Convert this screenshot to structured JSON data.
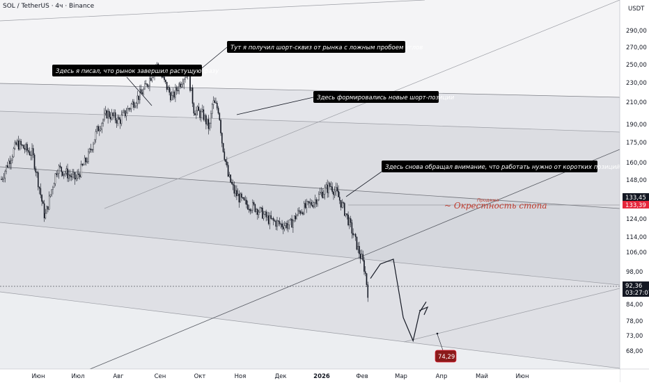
{
  "header": {
    "symbol": "SOL / TetherUS · 4ч · Binance",
    "currency": "USDT"
  },
  "chart_data": {
    "type": "candlestick",
    "title": "SOL / TetherUS · 4ч · Binance",
    "ylabel": "USDT",
    "y_ticks": [
      "290,00",
      "270,00",
      "250,00",
      "230,00",
      "210,00",
      "190,00",
      "175,00",
      "160,00",
      "148,00",
      "133,45",
      "133,39",
      "124,00",
      "114,00",
      "106,00",
      "98,00",
      "92,36",
      "84,00",
      "78,00",
      "73,00",
      "68,00"
    ],
    "x_ticks": [
      "Июн",
      "Июл",
      "Авг",
      "Сен",
      "Окт",
      "Ноя",
      "Дек",
      "2026",
      "Фев",
      "Мар",
      "Апр",
      "Май",
      "Июн"
    ],
    "last_price": "92,36",
    "countdown": "03:27:07",
    "level_prices": [
      "133,45",
      "133,39"
    ],
    "target_price": "74,29",
    "price_path": [
      [
        0,
        150
      ],
      [
        0.05,
        176
      ],
      [
        0.1,
        168
      ],
      [
        0.14,
        126
      ],
      [
        0.18,
        158
      ],
      [
        0.24,
        150
      ],
      [
        0.28,
        166
      ],
      [
        0.31,
        188
      ],
      [
        0.34,
        202
      ],
      [
        0.38,
        195
      ],
      [
        0.42,
        210
      ],
      [
        0.46,
        225
      ],
      [
        0.5,
        252
      ],
      [
        0.52,
        236
      ],
      [
        0.55,
        216
      ],
      [
        0.58,
        235
      ],
      [
        0.6,
        245
      ],
      [
        0.62,
        205
      ],
      [
        0.65,
        200
      ],
      [
        0.67,
        188
      ],
      [
        0.68,
        212
      ],
      [
        0.7,
        205
      ],
      [
        0.71,
        178
      ],
      [
        0.73,
        152
      ],
      [
        0.75,
        142
      ],
      [
        0.78,
        135
      ],
      [
        0.82,
        132
      ],
      [
        0.86,
        125
      ],
      [
        0.9,
        122
      ],
      [
        0.93,
        122
      ],
      [
        0.96,
        130
      ],
      [
        1.0,
        135
      ],
      [
        1.03,
        141
      ],
      [
        1.06,
        146
      ],
      [
        1.08,
        141
      ],
      [
        1.11,
        128
      ],
      [
        1.13,
        118
      ],
      [
        1.15,
        108
      ],
      [
        1.17,
        100
      ],
      [
        1.18,
        90
      ]
    ],
    "projection_path": [
      [
        0,
        96
      ],
      [
        0.3,
        102
      ],
      [
        0.7,
        104
      ],
      [
        1.0,
        80
      ],
      [
        1.3,
        72
      ],
      [
        1.5,
        82
      ],
      [
        1.7,
        86
      ]
    ],
    "annotations": [
      {
        "text": "Тут я получил  шорт-сквиз от рынка с ложным пробоем углов"
      },
      {
        "text": "Здесь я писал, что рынок завершил растущую фазу"
      },
      {
        "text": "Здесь формировались новые шорт-позиции"
      },
      {
        "text": "Здесь снова обращал внимание, что работать нужно от коротких позиций"
      }
    ],
    "label_sell": "Продажа",
    "label_zone": "~ Окрестность стопа"
  },
  "colors": {
    "candle": "#131722",
    "band_dark": "#d1d4dc",
    "band_light": "#e6e7ec",
    "annotation_bg": "#000000",
    "price_tag_red": "#e5263b",
    "target_tag": "#8b1a1a",
    "zone_text": "#c0392b",
    "last_price_tag": "#131722"
  }
}
